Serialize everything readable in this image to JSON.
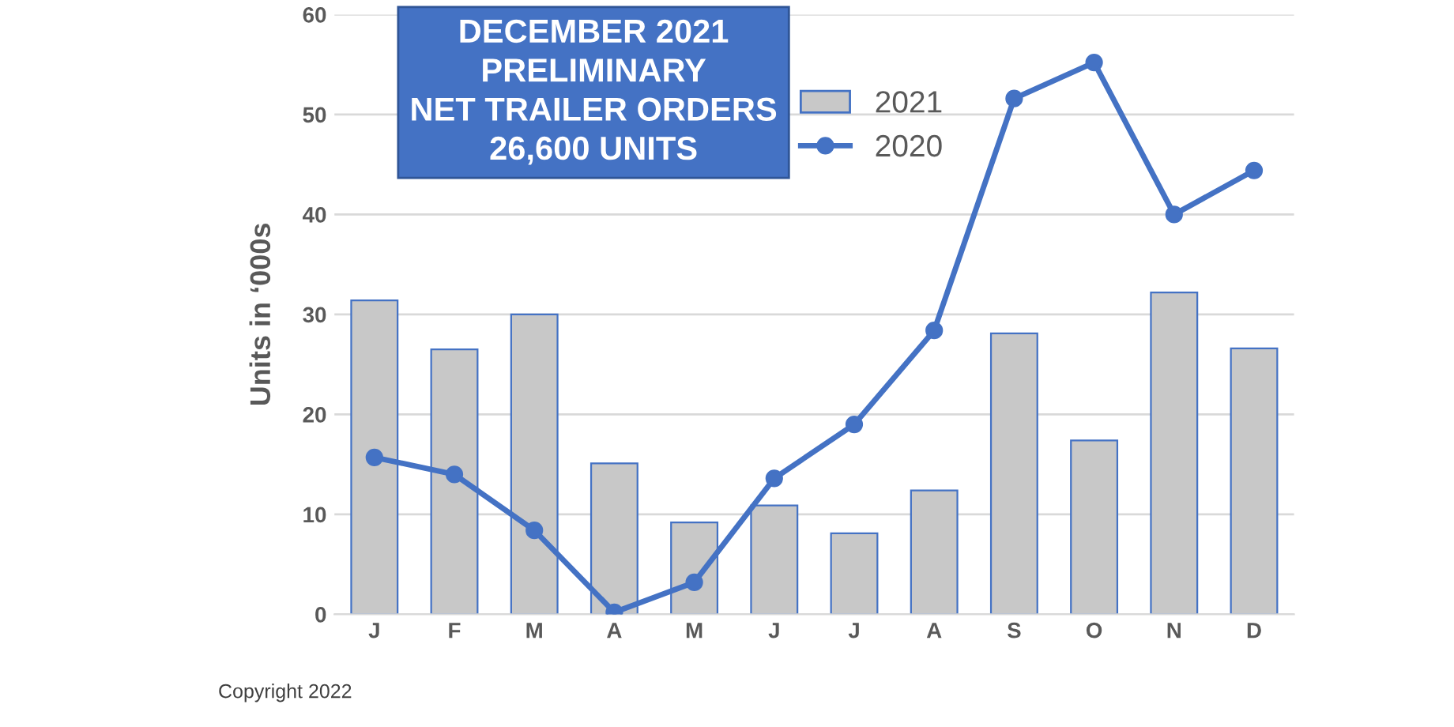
{
  "chart_data": {
    "type": "bar",
    "title": "DECEMBER 2021\nPRELIMINARY\nNET TRAILER ORDERS\n26,600 UNITS",
    "ylabel": "Units in ‘000s",
    "categories": [
      "J",
      "F",
      "M",
      "A",
      "M",
      "J",
      "J",
      "A",
      "S",
      "O",
      "N",
      "D"
    ],
    "series": [
      {
        "name": "2021",
        "color": "#c8c8c8",
        "values": [
          31.4,
          26.5,
          30.0,
          15.1,
          9.2,
          10.9,
          8.1,
          12.4,
          28.1,
          17.4,
          32.2,
          26.6
        ]
      },
      {
        "name": "2020",
        "type": "line",
        "color": "#4472c4",
        "marker": "circle",
        "values": [
          15.7,
          14.0,
          8.4,
          0.2,
          3.2,
          13.6,
          19.0,
          28.4,
          51.6,
          55.2,
          40.0,
          44.4
        ]
      }
    ],
    "ylim": [
      0,
      60
    ],
    "yticks": [
      0,
      10,
      20,
      30,
      40,
      50,
      60
    ],
    "grid": "y",
    "legend": "top",
    "annotations": [
      "Copyright 2022"
    ]
  }
}
